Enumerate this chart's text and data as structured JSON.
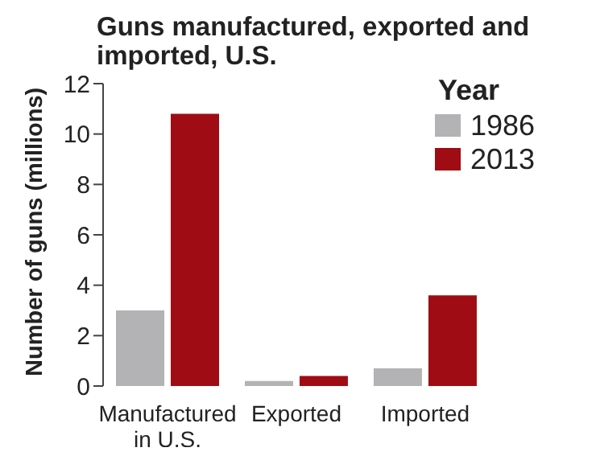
{
  "chart_data": {
    "type": "bar",
    "title": "Guns manufactured, exported and imported, U.S.",
    "ylabel": "Number of guns (millions)",
    "legend_title": "Year",
    "categories": [
      "Manufactured in U.S.",
      "Exported",
      "Imported"
    ],
    "series": [
      {
        "name": "1986",
        "color": "#b3b3b5",
        "values": [
          3.0,
          0.2,
          0.7
        ]
      },
      {
        "name": "2013",
        "color": "#a00c13",
        "values": [
          10.8,
          0.4,
          3.6
        ]
      }
    ],
    "ylim": [
      0,
      12
    ],
    "yticks": [
      0,
      2,
      4,
      6,
      8,
      10,
      12
    ],
    "grid": false,
    "legend": "top right"
  }
}
